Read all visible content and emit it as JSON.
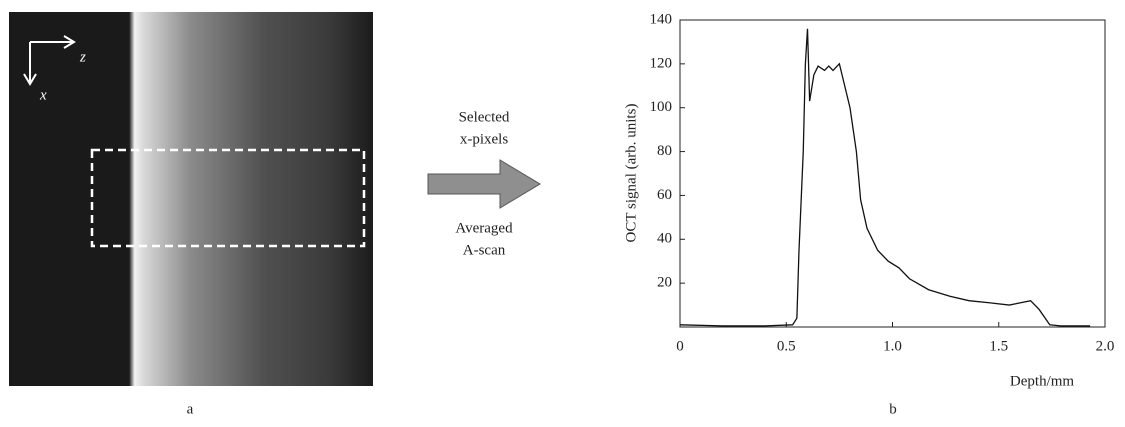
{
  "image_panel": {
    "label": "a",
    "axis_horizontal": "z",
    "axis_vertical": "x"
  },
  "arrow": {
    "above": [
      "Selected",
      "x-pixels"
    ],
    "below": [
      "Averaged",
      "A-scan"
    ]
  },
  "chart_data": {
    "type": "line",
    "panel_label": "b",
    "x_label": "Depth/mm",
    "y_label": "OCT signal (arb. units)",
    "xlim": [
      0,
      2.0
    ],
    "ylim": [
      0,
      140
    ],
    "xticks": [
      0,
      0.5,
      {
        "value": 1,
        "label": "1.0"
      },
      1.5,
      {
        "value": 2,
        "label": "2.0"
      }
    ],
    "yticks": [
      20,
      40,
      60,
      80,
      100,
      120,
      140
    ],
    "x": [
      0,
      0.2,
      0.4,
      0.53,
      0.55,
      0.56,
      0.58,
      0.59,
      0.6,
      0.61,
      0.63,
      0.65,
      0.68,
      0.7,
      0.72,
      0.75,
      0.77,
      0.8,
      0.83,
      0.85,
      0.88,
      0.93,
      0.98,
      1.03,
      1.08,
      1.17,
      1.27,
      1.36,
      1.46,
      1.55,
      1.6,
      1.65,
      1.69,
      1.74,
      1.79,
      1.93
    ],
    "series": [
      {
        "color": "#111111",
        "values": [
          1,
          0.5,
          0.5,
          1,
          4,
          35,
          80,
          120,
          136,
          103,
          115,
          119,
          117,
          119,
          117,
          120,
          112,
          100,
          80,
          58,
          45,
          35,
          30,
          27,
          22,
          17,
          14,
          12,
          11,
          10,
          11,
          12,
          8,
          1,
          0.5,
          0.5
        ]
      }
    ]
  }
}
